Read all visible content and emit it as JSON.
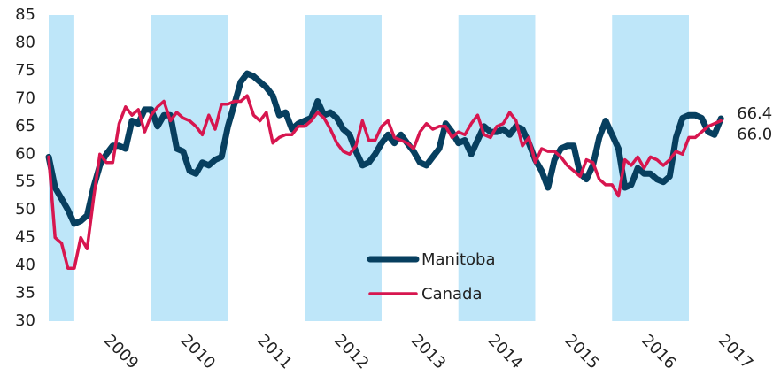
{
  "chart_data": {
    "type": "line",
    "categories": [
      null,
      null,
      null,
      null,
      null,
      null,
      null,
      null,
      null,
      "2009",
      null,
      null,
      null,
      null,
      null,
      null,
      null,
      null,
      null,
      null,
      null,
      "2010",
      null,
      null,
      null,
      null,
      null,
      null,
      null,
      null,
      null,
      null,
      null,
      "2011",
      null,
      null,
      null,
      null,
      null,
      null,
      null,
      null,
      null,
      null,
      null,
      "2012",
      null,
      null,
      null,
      null,
      null,
      null,
      null,
      null,
      null,
      null,
      null,
      "2013",
      null,
      null,
      null,
      null,
      null,
      null,
      null,
      null,
      null,
      null,
      null,
      "2014",
      null,
      null,
      null,
      null,
      null,
      null,
      null,
      null,
      null,
      null,
      null,
      "2015",
      null,
      null,
      null,
      null,
      null,
      null,
      null,
      null,
      null,
      null,
      null,
      "2016",
      null,
      null,
      null,
      null,
      null,
      null,
      null,
      null,
      null,
      null,
      null,
      "2017"
    ],
    "series": [
      {
        "name": "Manitoba",
        "color": "#073f5f",
        "values": [
          59.5,
          54,
          52,
          50,
          47.5,
          48,
          49,
          54,
          58,
          60,
          61.5,
          61.5,
          61,
          66,
          65.5,
          68,
          68,
          65,
          67,
          67,
          61,
          60.5,
          57,
          56.5,
          58.5,
          58,
          59,
          59.5,
          65,
          69,
          73,
          74.5,
          74,
          73,
          72,
          70.5,
          67,
          67.5,
          64.5,
          65.5,
          66,
          66.5,
          69.5,
          67,
          67.5,
          66.5,
          64.5,
          63.5,
          60.5,
          58,
          58.5,
          60,
          62,
          63.5,
          62,
          63.5,
          62,
          60.5,
          58.5,
          58,
          59.5,
          61,
          65.5,
          64,
          62,
          62.5,
          60,
          62.5,
          65,
          64,
          64,
          64.5,
          63.5,
          65,
          64.5,
          62,
          59,
          57,
          54,
          59,
          61,
          61.5,
          61.5,
          56.5,
          55.5,
          58,
          63,
          66,
          63.5,
          61,
          54,
          54.5,
          57.5,
          56.5,
          56.5,
          55.5,
          55,
          56,
          63,
          66.5,
          67,
          67,
          66.5,
          64,
          63.5,
          66.4
        ],
        "value_labels": [
          null,
          null,
          null,
          null,
          null,
          null,
          null,
          null,
          null,
          null,
          null,
          null,
          null,
          null,
          null,
          null,
          null,
          null,
          null,
          null,
          null,
          null,
          null,
          null,
          null,
          null,
          null,
          null,
          null,
          null,
          null,
          null,
          null,
          null,
          null,
          null,
          null,
          null,
          null,
          null,
          null,
          null,
          null,
          null,
          null,
          null,
          null,
          null,
          null,
          null,
          null,
          null,
          null,
          null,
          null,
          null,
          null,
          null,
          null,
          null,
          null,
          null,
          null,
          null,
          null,
          null,
          null,
          null,
          null,
          null,
          null,
          null,
          null,
          null,
          null,
          null,
          null,
          null,
          null,
          null,
          null,
          null,
          null,
          null,
          null,
          null,
          null,
          null,
          null,
          null,
          null,
          null,
          null,
          null,
          null,
          null,
          null,
          null,
          null,
          null,
          null,
          null,
          null,
          null,
          null,
          "66.4"
        ]
      },
      {
        "name": "Canada",
        "color": "#d7164f",
        "values": [
          59.5,
          45,
          44,
          39.5,
          39.5,
          45,
          43,
          52,
          60,
          58.5,
          58.5,
          65.5,
          68.5,
          67,
          68,
          64,
          67,
          68.5,
          69.5,
          66,
          67.5,
          66.5,
          66,
          65,
          63.5,
          67,
          64.5,
          69,
          69,
          69.5,
          69.5,
          70.5,
          67,
          66,
          67.5,
          62,
          63,
          63.5,
          63.5,
          65,
          65,
          66,
          67.5,
          66.5,
          64.5,
          62,
          60.5,
          60,
          61.5,
          66,
          62.5,
          62.5,
          65,
          66,
          63,
          62.5,
          62,
          61,
          64,
          65.5,
          64.5,
          65,
          65,
          63,
          64,
          63.5,
          65.5,
          67,
          63.5,
          63,
          65,
          65.5,
          67.5,
          66,
          61.5,
          63,
          58.5,
          61,
          60.5,
          60.5,
          59.5,
          58,
          57,
          56,
          59,
          58.5,
          55.5,
          54.5,
          54.5,
          52.5,
          59,
          58,
          59.5,
          57.5,
          59.5,
          59,
          58,
          59,
          60.5,
          60,
          63,
          63,
          64,
          65,
          65.5,
          66
        ],
        "value_labels": [
          null,
          null,
          null,
          null,
          null,
          null,
          null,
          null,
          null,
          null,
          null,
          null,
          null,
          null,
          null,
          null,
          null,
          null,
          null,
          null,
          null,
          null,
          null,
          null,
          null,
          null,
          null,
          null,
          null,
          null,
          null,
          null,
          null,
          null,
          null,
          null,
          null,
          null,
          null,
          null,
          null,
          null,
          null,
          null,
          null,
          null,
          null,
          null,
          null,
          null,
          null,
          null,
          null,
          null,
          null,
          null,
          null,
          null,
          null,
          null,
          null,
          null,
          null,
          null,
          null,
          null,
          null,
          null,
          null,
          null,
          null,
          null,
          null,
          null,
          null,
          null,
          null,
          null,
          null,
          null,
          null,
          null,
          null,
          null,
          null,
          null,
          null,
          null,
          null,
          null,
          null,
          null,
          null,
          null,
          null,
          null,
          null,
          null,
          null,
          null,
          null,
          null,
          null,
          null,
          null,
          "66.0"
        ]
      }
    ],
    "ylim": [
      30,
      85
    ],
    "yticks": [
      30,
      35,
      40,
      45,
      50,
      55,
      60,
      65,
      70,
      75,
      80,
      85
    ],
    "grid": false,
    "legend": "lower center"
  }
}
